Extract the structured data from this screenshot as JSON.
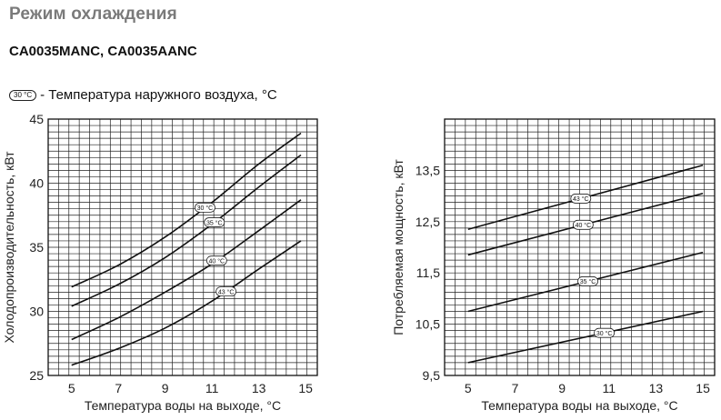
{
  "header": {
    "title": "Режим охлаждения",
    "models": "CA0035MANC, CA0035AANC",
    "legend_badge": "30 °C",
    "legend_text": "- Температура наружного воздуха, °C"
  },
  "chart_data": [
    {
      "type": "line",
      "xlabel": "Температура воды на выходе, °C",
      "ylabel": "Холодопроизводительность, кВт",
      "xlim": [
        4,
        15.5
      ],
      "ylim": [
        25,
        45
      ],
      "xticks": [
        5,
        7,
        9,
        11,
        13,
        15
      ],
      "xtick_labels": [
        "5",
        "7",
        "9",
        "11",
        "13",
        "15"
      ],
      "yticks": [
        25,
        30,
        35,
        40,
        45
      ],
      "ytick_labels": [
        "25",
        "30",
        "35",
        "40",
        "45"
      ],
      "grid": true,
      "x": [
        5,
        7,
        9,
        11,
        13,
        14.8
      ],
      "series": [
        {
          "name": "30 °C",
          "values": [
            31.9,
            33.6,
            35.8,
            38.5,
            41.5,
            43.9
          ]
        },
        {
          "name": "35 °C",
          "values": [
            30.4,
            32.1,
            34.2,
            36.8,
            39.7,
            42.2
          ]
        },
        {
          "name": "40 °C",
          "values": [
            27.8,
            29.5,
            31.5,
            33.7,
            36.3,
            38.7
          ]
        },
        {
          "name": "43 °C",
          "values": [
            25.8,
            27.1,
            28.7,
            30.8,
            33.3,
            35.5
          ]
        }
      ],
      "series_label_x": [
        10.7,
        11.1,
        11.2,
        11.6
      ]
    },
    {
      "type": "line",
      "xlabel": "Температура воды на выходе, °C",
      "ylabel": "Потребляемая мощность, кВт",
      "xlim": [
        4,
        15.5
      ],
      "ylim": [
        9.5,
        14.5
      ],
      "xticks": [
        5,
        7,
        9,
        11,
        13,
        15
      ],
      "xtick_labels": [
        "5",
        "7",
        "9",
        "11",
        "13",
        "15"
      ],
      "yticks": [
        9.5,
        10.5,
        11.5,
        12.5,
        13.5
      ],
      "ytick_labels": [
        "9,5",
        "10,5",
        "11,5",
        "12,5",
        "13,5"
      ],
      "grid": true,
      "x": [
        5,
        15
      ],
      "series": [
        {
          "name": "43 °C",
          "values": [
            12.35,
            13.6
          ]
        },
        {
          "name": "40 °C",
          "values": [
            11.85,
            13.05
          ]
        },
        {
          "name": "35 °C",
          "values": [
            10.75,
            11.9
          ]
        },
        {
          "name": "30 °C",
          "values": [
            9.75,
            10.75
          ]
        }
      ],
      "series_label_x": [
        9.8,
        9.9,
        10.1,
        10.8
      ]
    }
  ]
}
